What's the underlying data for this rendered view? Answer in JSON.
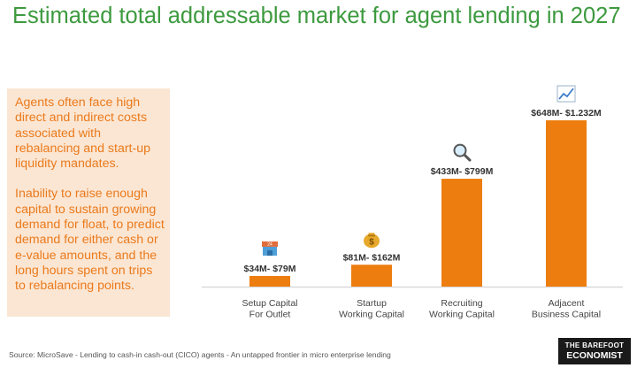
{
  "title": "Estimated total addressable market for agent lending in 2027",
  "callout": {
    "paragraph1": "Agents often face high direct and indirect costs associated with rebalancing and start-up liquidity mandates.",
    "paragraph2": "Inability to raise enough capital to sustain growing demand for float, to predict demand for either cash or e-value amounts, and the long hours spent on trips to rebalancing points."
  },
  "colors": {
    "bar": "#ed7d0f",
    "title": "#3d9a3f",
    "callout_bg": "#fbe6d3",
    "callout_text": "#ea7a1c",
    "axis": "#d9d9d9"
  },
  "chart_data": {
    "type": "bar",
    "title": "Estimated total addressable market for agent lending in 2027",
    "categories": [
      [
        "Setup Capital",
        "For Outlet"
      ],
      [
        "Startup",
        "Working Capital"
      ],
      [
        "Recruiting",
        "Working Capital"
      ],
      [
        "Adjacent",
        "Business Capital"
      ]
    ],
    "values": [
      79,
      162,
      799,
      1232
    ],
    "value_labels": [
      "$34M- $79M",
      "$81M- $162M",
      "$433M- $799M",
      "$648M- $1.232M"
    ],
    "icons": [
      "store-icon",
      "money-bag-icon",
      "magnifier-icon",
      "trend-chart-icon"
    ],
    "unit": "$M",
    "ylim": [
      0,
      1232
    ],
    "xlabel": "",
    "ylabel": "",
    "grid": false
  },
  "footer": {
    "source": "Source: MicroSave - Lending to cash-in cash-out (CICO) agents - An untapped frontier in micro enterprise lending",
    "logo_line1": "THE BAREFOOT",
    "logo_line2": "ECONOMIST"
  }
}
